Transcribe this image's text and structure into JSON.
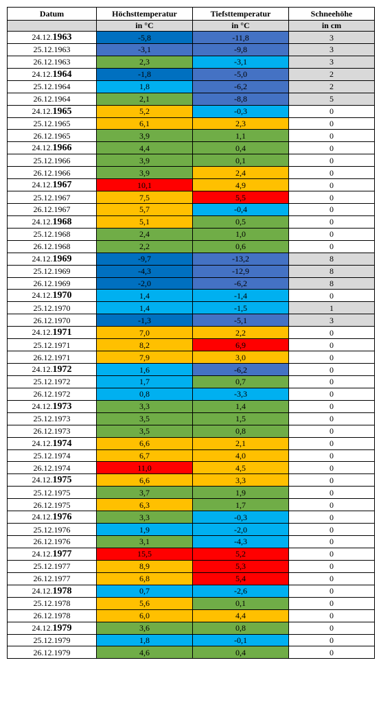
{
  "table": {
    "header": [
      "Datum",
      "Höchsttemperatur",
      "Tiefsttemperatur",
      "Schneehöhe"
    ],
    "units": [
      "",
      "in °C",
      "in °C",
      "in cm"
    ],
    "rows": [
      {
        "cells": [
          "24.12.1963",
          "-5,8",
          "-11,8",
          "3"
        ],
        "fills": [
          "#ffffff",
          "#0070c0",
          "#4472c4",
          "#d9d9d9"
        ],
        "year_bold": true
      },
      {
        "cells": [
          "25.12.1963",
          "-3,1",
          "-9,8",
          "3"
        ],
        "fills": [
          "#ffffff",
          "#4472c4",
          "#4472c4",
          "#d9d9d9"
        ],
        "year_bold": false
      },
      {
        "cells": [
          "26.12.1963",
          "2,3",
          "-3,1",
          "3"
        ],
        "fills": [
          "#ffffff",
          "#70ad47",
          "#00b0f0",
          "#d9d9d9"
        ],
        "year_bold": false
      },
      {
        "cells": [
          "24.12.1964",
          "-1,8",
          "-5,0",
          "2"
        ],
        "fills": [
          "#ffffff",
          "#0070c0",
          "#4472c4",
          "#d9d9d9"
        ],
        "year_bold": true
      },
      {
        "cells": [
          "25.12.1964",
          "1,8",
          "-6,2",
          "2"
        ],
        "fills": [
          "#ffffff",
          "#00b0f0",
          "#4472c4",
          "#d9d9d9"
        ],
        "year_bold": false
      },
      {
        "cells": [
          "26.12.1964",
          "2,1",
          "-8,8",
          "5"
        ],
        "fills": [
          "#ffffff",
          "#70ad47",
          "#4472c4",
          "#d9d9d9"
        ],
        "year_bold": false
      },
      {
        "cells": [
          "24.12.1965",
          "5,2",
          "-0,3",
          "0"
        ],
        "fills": [
          "#ffffff",
          "#ffc000",
          "#00b0f0",
          "#ffffff"
        ],
        "year_bold": true
      },
      {
        "cells": [
          "25.12.1965",
          "6,1",
          "2,3",
          "0"
        ],
        "fills": [
          "#ffffff",
          "#ffc000",
          "#ffc000",
          "#ffffff"
        ],
        "year_bold": false
      },
      {
        "cells": [
          "26.12.1965",
          "3,9",
          "1,1",
          "0"
        ],
        "fills": [
          "#ffffff",
          "#70ad47",
          "#70ad47",
          "#ffffff"
        ],
        "year_bold": false
      },
      {
        "cells": [
          "24.12.1966",
          "4,4",
          "0,4",
          "0"
        ],
        "fills": [
          "#ffffff",
          "#70ad47",
          "#70ad47",
          "#ffffff"
        ],
        "year_bold": true
      },
      {
        "cells": [
          "25.12.1966",
          "3,9",
          "0,1",
          "0"
        ],
        "fills": [
          "#ffffff",
          "#70ad47",
          "#70ad47",
          "#ffffff"
        ],
        "year_bold": false
      },
      {
        "cells": [
          "26.12.1966",
          "3,9",
          "2,4",
          "0"
        ],
        "fills": [
          "#ffffff",
          "#70ad47",
          "#ffc000",
          "#ffffff"
        ],
        "year_bold": false
      },
      {
        "cells": [
          "24.12.1967",
          "10,1",
          "4,9",
          "0"
        ],
        "fills": [
          "#ffffff",
          "#ff0000",
          "#ffc000",
          "#ffffff"
        ],
        "year_bold": true
      },
      {
        "cells": [
          "25.12.1967",
          "7,5",
          "5,5",
          "0"
        ],
        "fills": [
          "#ffffff",
          "#ffc000",
          "#ff0000",
          "#ffffff"
        ],
        "year_bold": false
      },
      {
        "cells": [
          "26.12.1967",
          "5,7",
          "-0,4",
          "0"
        ],
        "fills": [
          "#ffffff",
          "#ffc000",
          "#00b0f0",
          "#ffffff"
        ],
        "year_bold": false
      },
      {
        "cells": [
          "24.12.1968",
          "5,1",
          "0,5",
          "0"
        ],
        "fills": [
          "#ffffff",
          "#ffc000",
          "#70ad47",
          "#ffffff"
        ],
        "year_bold": true
      },
      {
        "cells": [
          "25.12.1968",
          "2,4",
          "1,0",
          "0"
        ],
        "fills": [
          "#ffffff",
          "#70ad47",
          "#70ad47",
          "#ffffff"
        ],
        "year_bold": false
      },
      {
        "cells": [
          "26.12.1968",
          "2,2",
          "0,6",
          "0"
        ],
        "fills": [
          "#ffffff",
          "#70ad47",
          "#70ad47",
          "#ffffff"
        ],
        "year_bold": false
      },
      {
        "cells": [
          "24.12.1969",
          "-9,7",
          "-13,2",
          "8"
        ],
        "fills": [
          "#ffffff",
          "#0070c0",
          "#4472c4",
          "#d9d9d9"
        ],
        "year_bold": true
      },
      {
        "cells": [
          "25.12.1969",
          "-4,3",
          "-12,9",
          "8"
        ],
        "fills": [
          "#ffffff",
          "#0070c0",
          "#4472c4",
          "#d9d9d9"
        ],
        "year_bold": false
      },
      {
        "cells": [
          "26.12.1969",
          "-2,0",
          "-6,2",
          "8"
        ],
        "fills": [
          "#ffffff",
          "#0070c0",
          "#4472c4",
          "#d9d9d9"
        ],
        "year_bold": false
      },
      {
        "cells": [
          "24.12.1970",
          "1,4",
          "-1,4",
          "0"
        ],
        "fills": [
          "#ffffff",
          "#00b0f0",
          "#00b0f0",
          "#ffffff"
        ],
        "year_bold": true
      },
      {
        "cells": [
          "25.12.1970",
          "1,4",
          "-1,5",
          "1"
        ],
        "fills": [
          "#ffffff",
          "#00b0f0",
          "#00b0f0",
          "#d9d9d9"
        ],
        "year_bold": false
      },
      {
        "cells": [
          "26.12.1970",
          "-1,3",
          "-5,1",
          "3"
        ],
        "fills": [
          "#ffffff",
          "#0070c0",
          "#4472c4",
          "#d9d9d9"
        ],
        "year_bold": false
      },
      {
        "cells": [
          "24.12.1971",
          "7,0",
          "2,2",
          "0"
        ],
        "fills": [
          "#ffffff",
          "#ffc000",
          "#ffc000",
          "#ffffff"
        ],
        "year_bold": true
      },
      {
        "cells": [
          "25.12.1971",
          "8,2",
          "6,9",
          "0"
        ],
        "fills": [
          "#ffffff",
          "#ffc000",
          "#ff0000",
          "#ffffff"
        ],
        "year_bold": false
      },
      {
        "cells": [
          "26.12.1971",
          "7,9",
          "3,0",
          "0"
        ],
        "fills": [
          "#ffffff",
          "#ffc000",
          "#ffc000",
          "#ffffff"
        ],
        "year_bold": false
      },
      {
        "cells": [
          "24.12.1972",
          "1,6",
          "-6,2",
          "0"
        ],
        "fills": [
          "#ffffff",
          "#00b0f0",
          "#4472c4",
          "#ffffff"
        ],
        "year_bold": true
      },
      {
        "cells": [
          "25.12.1972",
          "1,7",
          "0,7",
          "0"
        ],
        "fills": [
          "#ffffff",
          "#00b0f0",
          "#70ad47",
          "#ffffff"
        ],
        "year_bold": false
      },
      {
        "cells": [
          "26.12.1972",
          "0,8",
          "-3,3",
          "0"
        ],
        "fills": [
          "#ffffff",
          "#00b0f0",
          "#00b0f0",
          "#ffffff"
        ],
        "year_bold": false
      },
      {
        "cells": [
          "24.12.1973",
          "3,3",
          "1,4",
          "0"
        ],
        "fills": [
          "#ffffff",
          "#70ad47",
          "#70ad47",
          "#ffffff"
        ],
        "year_bold": true
      },
      {
        "cells": [
          "25.12.1973",
          "3,5",
          "1,5",
          "0"
        ],
        "fills": [
          "#ffffff",
          "#70ad47",
          "#70ad47",
          "#ffffff"
        ],
        "year_bold": false
      },
      {
        "cells": [
          "26.12.1973",
          "3,5",
          "0,8",
          "0"
        ],
        "fills": [
          "#ffffff",
          "#70ad47",
          "#70ad47",
          "#ffffff"
        ],
        "year_bold": false
      },
      {
        "cells": [
          "24.12.1974",
          "6,6",
          "2,1",
          "0"
        ],
        "fills": [
          "#ffffff",
          "#ffc000",
          "#ffc000",
          "#ffffff"
        ],
        "year_bold": true
      },
      {
        "cells": [
          "25.12.1974",
          "6,7",
          "4,0",
          "0"
        ],
        "fills": [
          "#ffffff",
          "#ffc000",
          "#ffc000",
          "#ffffff"
        ],
        "year_bold": false
      },
      {
        "cells": [
          "26.12.1974",
          "11,0",
          "4,5",
          "0"
        ],
        "fills": [
          "#ffffff",
          "#ff0000",
          "#ffc000",
          "#ffffff"
        ],
        "year_bold": false
      },
      {
        "cells": [
          "24.12.1975",
          "6,6",
          "3,3",
          "0"
        ],
        "fills": [
          "#ffffff",
          "#ffc000",
          "#ffc000",
          "#ffffff"
        ],
        "year_bold": true
      },
      {
        "cells": [
          "25.12.1975",
          "3,7",
          "1,9",
          "0"
        ],
        "fills": [
          "#ffffff",
          "#70ad47",
          "#70ad47",
          "#ffffff"
        ],
        "year_bold": false
      },
      {
        "cells": [
          "26.12.1975",
          "6,3",
          "1,7",
          "0"
        ],
        "fills": [
          "#ffffff",
          "#ffc000",
          "#70ad47",
          "#ffffff"
        ],
        "year_bold": false
      },
      {
        "cells": [
          "24.12.1976",
          "3,3",
          "-0,3",
          "0"
        ],
        "fills": [
          "#ffffff",
          "#70ad47",
          "#00b0f0",
          "#ffffff"
        ],
        "year_bold": true
      },
      {
        "cells": [
          "25.12.1976",
          "1,9",
          "-2,0",
          "0"
        ],
        "fills": [
          "#ffffff",
          "#00b0f0",
          "#00b0f0",
          "#ffffff"
        ],
        "year_bold": false
      },
      {
        "cells": [
          "26.12.1976",
          "3,1",
          "-4,3",
          "0"
        ],
        "fills": [
          "#ffffff",
          "#70ad47",
          "#00b0f0",
          "#ffffff"
        ],
        "year_bold": false
      },
      {
        "cells": [
          "24.12.1977",
          "15,5",
          "5,2",
          "0"
        ],
        "fills": [
          "#ffffff",
          "#ff0000",
          "#ff0000",
          "#ffffff"
        ],
        "year_bold": true
      },
      {
        "cells": [
          "25.12.1977",
          "8,9",
          "5,3",
          "0"
        ],
        "fills": [
          "#ffffff",
          "#ffc000",
          "#ff0000",
          "#ffffff"
        ],
        "year_bold": false
      },
      {
        "cells": [
          "26.12.1977",
          "6,8",
          "5,4",
          "0"
        ],
        "fills": [
          "#ffffff",
          "#ffc000",
          "#ff0000",
          "#ffffff"
        ],
        "year_bold": false
      },
      {
        "cells": [
          "24.12.1978",
          "0,7",
          "-2,6",
          "0"
        ],
        "fills": [
          "#ffffff",
          "#00b0f0",
          "#00b0f0",
          "#ffffff"
        ],
        "year_bold": true
      },
      {
        "cells": [
          "25.12.1978",
          "5,6",
          "0,1",
          "0"
        ],
        "fills": [
          "#ffffff",
          "#ffc000",
          "#70ad47",
          "#ffffff"
        ],
        "year_bold": false
      },
      {
        "cells": [
          "26.12.1978",
          "6,0",
          "4,4",
          "0"
        ],
        "fills": [
          "#ffffff",
          "#ffc000",
          "#ffc000",
          "#ffffff"
        ],
        "year_bold": false
      },
      {
        "cells": [
          "24.12.1979",
          "3,6",
          "0,8",
          "0"
        ],
        "fills": [
          "#ffffff",
          "#70ad47",
          "#70ad47",
          "#ffffff"
        ],
        "year_bold": true
      },
      {
        "cells": [
          "25.12.1979",
          "1,8",
          "-0,1",
          "0"
        ],
        "fills": [
          "#ffffff",
          "#00b0f0",
          "#00b0f0",
          "#ffffff"
        ],
        "year_bold": false
      },
      {
        "cells": [
          "26.12.1979",
          "4,6",
          "0,4",
          "0"
        ],
        "fills": [
          "#ffffff",
          "#70ad47",
          "#70ad47",
          "#ffffff"
        ],
        "year_bold": false
      }
    ]
  }
}
